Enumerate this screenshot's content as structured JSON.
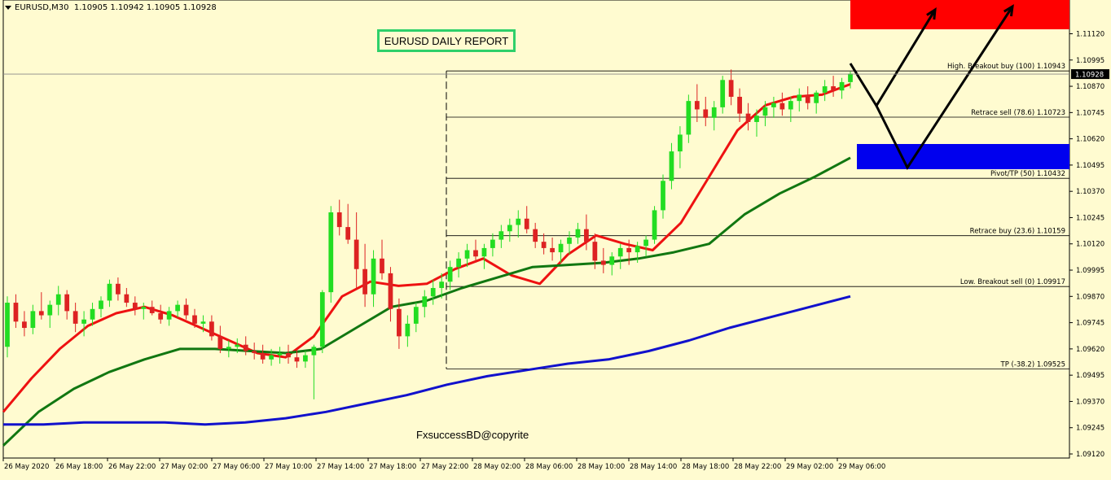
{
  "header": {
    "symbol": "EURUSD,M30",
    "ohlc": "1.10905 1.10942 1.10905 1.10928"
  },
  "report_title": "EURUSD DAILY REPORT",
  "watermark": "FxsuccessBD@copyrite",
  "colors": {
    "background": "#fffbd0",
    "bull_candle": "#22dd22",
    "bear_candle": "#dd2222",
    "ema_fast": "#ee1111",
    "ema_mid": "#117711",
    "ema_slow": "#1111cc",
    "sell_zone": "#ff0000",
    "buy_zone": "#0000ee",
    "arrows": "#000000"
  },
  "chart_data": {
    "type": "line",
    "ylim": [
      1.0912,
      1.1118
    ],
    "y_ticks": [
      "1.11120",
      "1.10995",
      "1.10870",
      "1.10745",
      "1.10620",
      "1.10495",
      "1.10370",
      "1.10245",
      "1.10120",
      "1.09995",
      "1.09870",
      "1.09745",
      "1.09620",
      "1.09495",
      "1.09370",
      "1.09245",
      "1.09120"
    ],
    "x_ticks": [
      "26 May 2020",
      "26 May 18:00",
      "26 May 22:00",
      "27 May 02:00",
      "27 May 06:00",
      "27 May 10:00",
      "27 May 14:00",
      "27 May 18:00",
      "27 May 22:00",
      "28 May 02:00",
      "28 May 06:00",
      "28 May 10:00",
      "28 May 14:00",
      "28 May 18:00",
      "28 May 22:00",
      "29 May 02:00",
      "29 May 06:00"
    ],
    "current_price": "1.10928",
    "current_price_value": 1.10928,
    "candles": [
      [
        1.0963,
        1.0987,
        1.0958,
        1.0984
      ],
      [
        1.0984,
        1.0988,
        1.0972,
        1.0975
      ],
      [
        1.0975,
        1.098,
        1.0968,
        1.0972
      ],
      [
        1.0972,
        1.0983,
        1.0969,
        1.098
      ],
      [
        1.098,
        1.0989,
        1.0976,
        1.0978
      ],
      [
        1.0978,
        1.0985,
        1.0972,
        1.0983
      ],
      [
        1.0983,
        1.0992,
        1.0978,
        1.0988
      ],
      [
        1.0988,
        1.099,
        1.0976,
        1.098
      ],
      [
        1.098,
        1.0984,
        1.097,
        1.0974
      ],
      [
        1.0974,
        1.098,
        1.0968,
        1.0976
      ],
      [
        1.0976,
        1.0984,
        1.0973,
        1.0981
      ],
      [
        1.0981,
        1.0987,
        1.0977,
        1.0985
      ],
      [
        1.0985,
        1.0995,
        1.0982,
        1.0993
      ],
      [
        1.0993,
        1.0996,
        1.0985,
        1.0988
      ],
      [
        1.0988,
        1.0991,
        1.0982,
        1.0984
      ],
      [
        1.0984,
        1.0987,
        1.0978,
        1.0981
      ],
      [
        1.0981,
        1.0984,
        1.0976,
        1.0982
      ],
      [
        1.0982,
        1.0985,
        1.0978,
        1.0979
      ],
      [
        1.0979,
        1.0983,
        1.0974,
        1.0976
      ],
      [
        1.0976,
        1.0982,
        1.0973,
        1.098
      ],
      [
        1.098,
        1.0985,
        1.0977,
        1.0983
      ],
      [
        1.0983,
        1.0986,
        1.0976,
        1.0978
      ],
      [
        1.0978,
        1.0981,
        1.0972,
        1.0974
      ],
      [
        1.0974,
        1.0978,
        1.097,
        1.0975
      ],
      [
        1.0975,
        1.0978,
        1.0966,
        1.0968
      ],
      [
        1.0968,
        1.0973,
        1.096,
        1.0962
      ],
      [
        1.0962,
        1.0966,
        1.0958,
        1.0963
      ],
      [
        1.0963,
        1.0967,
        1.096,
        1.0964
      ],
      [
        1.0964,
        1.0968,
        1.0959,
        1.0961
      ],
      [
        1.0961,
        1.0965,
        1.0957,
        1.096
      ],
      [
        1.096,
        1.0964,
        1.0955,
        1.0957
      ],
      [
        1.0957,
        1.0962,
        1.0954,
        1.0959
      ],
      [
        1.0959,
        1.0963,
        1.0955,
        1.096
      ],
      [
        1.096,
        1.0964,
        1.0955,
        1.0958
      ],
      [
        1.0958,
        1.0962,
        1.0953,
        1.0956
      ],
      [
        1.0956,
        1.0961,
        1.0953,
        1.0959
      ],
      [
        1.0959,
        1.0964,
        1.0938,
        1.0963
      ],
      [
        1.0963,
        1.099,
        1.096,
        1.0989
      ],
      [
        1.0989,
        1.103,
        1.0984,
        1.1027
      ],
      [
        1.1027,
        1.1033,
        1.1016,
        1.102
      ],
      [
        1.102,
        1.1031,
        1.1012,
        1.1014
      ],
      [
        1.1014,
        1.1027,
        1.099,
        1.1
      ],
      [
        1.1,
        1.1012,
        1.0982,
        1.0988
      ],
      [
        1.0988,
        1.1009,
        1.0982,
        1.1005
      ],
      [
        1.1005,
        1.1014,
        1.0995,
        1.0998
      ],
      [
        1.0998,
        1.1001,
        1.0975,
        1.0981
      ],
      [
        1.0981,
        1.0986,
        1.0962,
        1.0968
      ],
      [
        1.0968,
        1.0978,
        1.0963,
        1.0974
      ],
      [
        1.0974,
        1.0984,
        1.097,
        1.0982
      ],
      [
        1.0982,
        1.099,
        1.0977,
        1.0987
      ],
      [
        1.0987,
        1.0995,
        1.0983,
        1.0991
      ],
      [
        1.0991,
        1.0998,
        1.0986,
        1.0994
      ],
      [
        1.0994,
        1.1004,
        1.099,
        1.1001
      ],
      [
        1.1001,
        1.1008,
        1.0996,
        1.1005
      ],
      [
        1.1005,
        1.1012,
        1.1001,
        1.1009
      ],
      [
        1.1009,
        1.1014,
        1.1003,
        1.1006
      ],
      [
        1.1006,
        1.1012,
        1.1,
        1.101
      ],
      [
        1.101,
        1.1017,
        1.1006,
        1.1014
      ],
      [
        1.1014,
        1.1021,
        1.101,
        1.1018
      ],
      [
        1.1018,
        1.1024,
        1.1013,
        1.1021
      ],
      [
        1.1021,
        1.1028,
        1.1015,
        1.1024
      ],
      [
        1.1024,
        1.103,
        1.1017,
        1.1019
      ],
      [
        1.1019,
        1.1022,
        1.101,
        1.1013
      ],
      [
        1.1013,
        1.1017,
        1.1007,
        1.101
      ],
      [
        1.101,
        1.1015,
        1.1004,
        1.1008
      ],
      [
        1.1008,
        1.1014,
        1.1003,
        1.1012
      ],
      [
        1.1012,
        1.1018,
        1.1007,
        1.1015
      ],
      [
        1.1015,
        1.1022,
        1.1012,
        1.1019
      ],
      [
        1.1019,
        1.1026,
        1.1009,
        1.1013
      ],
      [
        1.1013,
        1.1017,
        1.1,
        1.1004
      ],
      [
        1.1004,
        1.101,
        1.0998,
        1.1002
      ],
      [
        1.1002,
        1.1008,
        1.0997,
        1.1006
      ],
      [
        1.1006,
        1.1012,
        1.1,
        1.101
      ],
      [
        1.101,
        1.1014,
        1.1002,
        1.1008
      ],
      [
        1.1008,
        1.1013,
        1.1003,
        1.1011
      ],
      [
        1.1011,
        1.1016,
        1.1006,
        1.1014
      ],
      [
        1.1014,
        1.103,
        1.1012,
        1.1028
      ],
      [
        1.1028,
        1.1045,
        1.1024,
        1.1042
      ],
      [
        1.1042,
        1.106,
        1.1038,
        1.1056
      ],
      [
        1.1056,
        1.1068,
        1.1048,
        1.1064
      ],
      [
        1.1064,
        1.1083,
        1.106,
        1.108
      ],
      [
        1.108,
        1.1088,
        1.107,
        1.1076
      ],
      [
        1.1076,
        1.1082,
        1.1068,
        1.1072
      ],
      [
        1.1072,
        1.108,
        1.1066,
        1.1077
      ],
      [
        1.1077,
        1.1092,
        1.1074,
        1.109
      ],
      [
        1.109,
        1.1095,
        1.1078,
        1.1082
      ],
      [
        1.1082,
        1.1086,
        1.107,
        1.1074
      ],
      [
        1.1074,
        1.1079,
        1.1066,
        1.107
      ],
      [
        1.107,
        1.1076,
        1.1063,
        1.1073
      ],
      [
        1.1073,
        1.108,
        1.1068,
        1.1077
      ],
      [
        1.1077,
        1.1082,
        1.1072,
        1.1079
      ],
      [
        1.1079,
        1.1084,
        1.1073,
        1.1076
      ],
      [
        1.1076,
        1.1082,
        1.107,
        1.108
      ],
      [
        1.108,
        1.1086,
        1.1075,
        1.1083
      ],
      [
        1.1083,
        1.1087,
        1.1076,
        1.1079
      ],
      [
        1.1079,
        1.1085,
        1.1074,
        1.1084
      ],
      [
        1.1084,
        1.109,
        1.108,
        1.1087
      ],
      [
        1.1087,
        1.1092,
        1.1082,
        1.1085
      ],
      [
        1.1085,
        1.1091,
        1.1081,
        1.1089
      ],
      [
        1.1089,
        1.1094,
        1.1086,
        1.1093
      ]
    ],
    "series": [
      {
        "color": "#ee1111",
        "values": [
          1.0932,
          1.0948,
          1.0962,
          1.0973,
          1.0979,
          1.0982,
          1.0978,
          1.0972,
          1.0966,
          1.096,
          1.0958,
          1.0968,
          1.0987,
          1.0994,
          1.0992,
          1.0993,
          1.1,
          1.1005,
          1.0997,
          1.0993,
          1.1007,
          1.1016,
          1.1012,
          1.1009,
          1.1022,
          1.1044,
          1.1066,
          1.1078,
          1.1082,
          1.1083,
          1.1088
        ]
      },
      {
        "color": "#117711",
        "values": [
          1.0916,
          1.0932,
          1.0943,
          1.0951,
          1.0957,
          1.0962,
          1.0962,
          1.0961,
          1.096,
          1.0962,
          1.0972,
          1.0982,
          1.0985,
          1.0991,
          1.0996,
          1.1001,
          1.1002,
          1.1003,
          1.1005,
          1.1008,
          1.1012,
          1.1026,
          1.1036,
          1.1044,
          1.1053
        ]
      },
      {
        "color": "#1111cc",
        "values": [
          1.0926,
          1.0926,
          1.0927,
          1.0927,
          1.0927,
          1.0926,
          1.0927,
          1.0929,
          1.0932,
          1.0936,
          1.094,
          1.0945,
          1.0949,
          1.0952,
          1.0955,
          1.0957,
          1.0961,
          1.0966,
          1.0972,
          1.0977,
          1.0982,
          1.0987
        ]
      }
    ],
    "fib_levels": [
      {
        "label": "High. Breakout buy (100)  1.10943",
        "value": 1.10943
      },
      {
        "label": "Retrace sell (78.6)  1.10723",
        "value": 1.10723
      },
      {
        "label": "Pivot/TP (50)  1.10432",
        "value": 1.10432
      },
      {
        "label": "Retrace buy (23.6)  1.10159",
        "value": 1.10159
      },
      {
        "label": "Low. Breakout sell (0)  1.09917",
        "value": 1.09917
      },
      {
        "label": "TP (-38.2)  1.09525",
        "value": 1.09525
      }
    ]
  }
}
